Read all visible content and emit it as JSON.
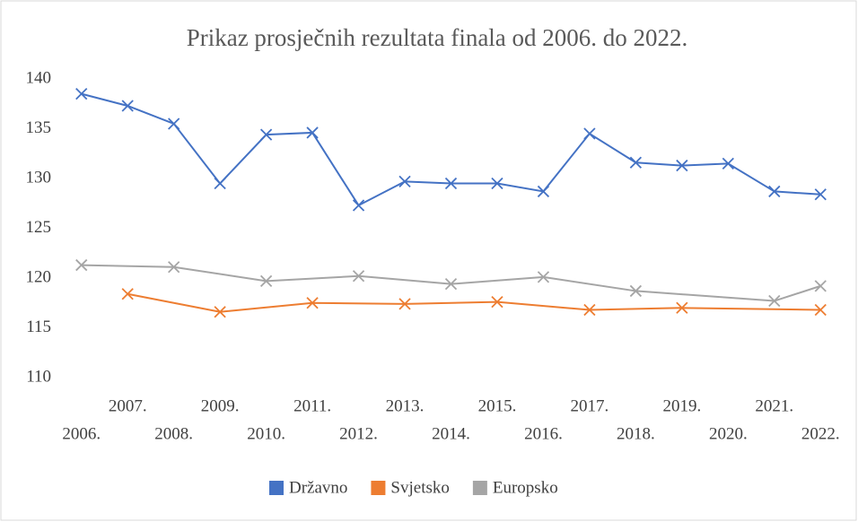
{
  "chart_data": {
    "type": "line",
    "title": "Prikaz prosječnih rezultata finala od 2006. do 2022.",
    "categories": [
      "2006.",
      "2007.",
      "2008.",
      "2009.",
      "2010.",
      "2011.",
      "2012.",
      "2013.",
      "2014.",
      "2015.",
      "2016.",
      "2017.",
      "2018.",
      "2019.",
      "2020.",
      "2021.",
      "2022."
    ],
    "series": [
      {
        "name": "Državno",
        "color": "#4472c4",
        "values": [
          138.5,
          137.3,
          135.5,
          129.5,
          134.4,
          134.6,
          127.3,
          129.7,
          129.5,
          129.5,
          128.7,
          134.5,
          131.6,
          131.3,
          131.5,
          128.7,
          128.4
        ]
      },
      {
        "name": "Svjetsko",
        "color": "#ed7d31",
        "values": [
          null,
          118.4,
          null,
          116.6,
          null,
          117.5,
          null,
          117.4,
          null,
          117.6,
          null,
          116.8,
          null,
          117.0,
          null,
          null,
          116.8
        ]
      },
      {
        "name": "Europsko",
        "color": "#a5a5a5",
        "values": [
          121.3,
          null,
          121.1,
          null,
          119.7,
          null,
          120.2,
          null,
          119.4,
          null,
          120.1,
          null,
          118.7,
          null,
          null,
          117.7,
          119.2
        ]
      }
    ],
    "ylim": [
      110,
      140
    ],
    "yticks": [
      110,
      115,
      120,
      125,
      130,
      135,
      140
    ],
    "grid": false,
    "span_gaps": true,
    "legend": "bottom"
  }
}
